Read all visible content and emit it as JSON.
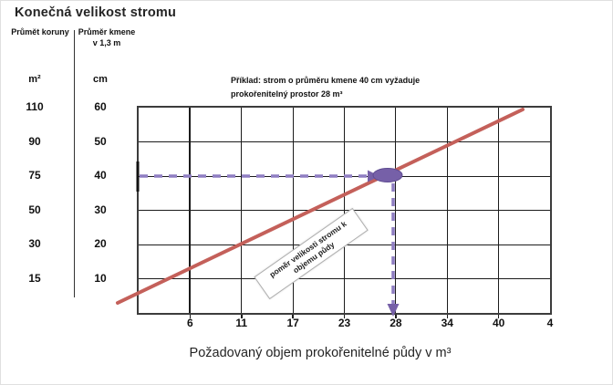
{
  "page": {
    "title": "Konečná velikost stromu",
    "xaxis_title": "Požadovaný objem prokořenitelné půdy v m³"
  },
  "columns": {
    "crown_header": "Průmět koruny",
    "trunk_header_line1": "Průměr kmene",
    "trunk_header_line2": "v 1,3 m",
    "crown_unit": "m²",
    "trunk_unit": "cm"
  },
  "annotation": {
    "line1": "Příklad: strom o průměru kmene 40 cm vyžaduje",
    "line2": "prokořenitelný prostor 28 m³"
  },
  "diagonal_label": "poměr velikosti stromu k objemu půdy",
  "colors": {
    "line": "#c4605a",
    "guide": "#8f7ec2",
    "marker": "#7660a8",
    "grid": "#1c1c1c"
  },
  "chart_data": {
    "type": "line",
    "title": "Konečná velikost stromu",
    "xlabel": "Požadovaný objem prokořenitelné půdy v m³",
    "x_ticks": [
      "6",
      "11",
      "17",
      "23",
      "28",
      "34",
      "40",
      "4"
    ],
    "y_axis_crown_m2": [
      "110",
      "90",
      "75",
      "50",
      "30",
      "15"
    ],
    "y_axis_trunk_cm": [
      "60",
      "50",
      "40",
      "30",
      "20",
      "10"
    ],
    "grid": true,
    "series": [
      {
        "name": "poměr velikosti stromu k objemu půdy",
        "color": "#c4605a",
        "description": "diagonal relationship line: trunk diameter (cm) / crown projection (m²) vs required rootable soil volume (m³)",
        "points_x_m3": [
          3,
          28,
          45
        ],
        "points_trunk_cm": [
          10,
          40,
          62
        ]
      }
    ],
    "example_point": {
      "trunk_diameter_cm": 40,
      "crown_projection_m2": 75,
      "required_soil_volume_m3": 28
    }
  }
}
